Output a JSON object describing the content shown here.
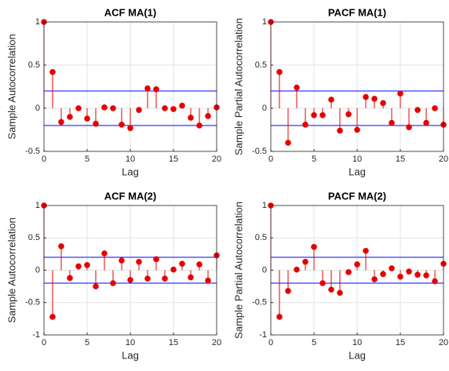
{
  "chart_data": [
    {
      "type": "stem",
      "title": "ACF MA(1)",
      "xlabel": "Lag",
      "ylabel": "Sample Autocorrelation",
      "x": [
        0,
        1,
        2,
        3,
        4,
        5,
        6,
        7,
        8,
        9,
        10,
        11,
        12,
        13,
        14,
        15,
        16,
        17,
        18,
        19,
        20
      ],
      "values": [
        1,
        0.42,
        -0.16,
        -0.1,
        0.0,
        -0.12,
        -0.18,
        0.01,
        0.0,
        -0.19,
        -0.23,
        -0.02,
        0.23,
        0.22,
        0.0,
        -0.01,
        0.03,
        -0.11,
        -0.2,
        -0.09,
        0.01
      ],
      "confidence_bounds": [
        -0.2,
        0.2
      ],
      "xlim": [
        0,
        20
      ],
      "xticks": [
        0,
        5,
        10,
        15,
        20
      ],
      "ylim": [
        -0.5,
        1
      ],
      "yticks": [
        -0.5,
        0,
        0.5,
        1
      ],
      "grid": true,
      "color": "#e60000",
      "bound_color": "#0000ff"
    },
    {
      "type": "stem",
      "title": "PACF MA(1)",
      "xlabel": "Lag",
      "ylabel": "Sample Partial Autocorrelation",
      "x": [
        0,
        1,
        2,
        3,
        4,
        5,
        6,
        7,
        8,
        9,
        10,
        11,
        12,
        13,
        14,
        15,
        16,
        17,
        18,
        19,
        20
      ],
      "values": [
        1,
        0.42,
        -0.4,
        0.24,
        -0.19,
        -0.08,
        -0.08,
        0.1,
        -0.26,
        -0.07,
        -0.25,
        0.13,
        0.11,
        0.06,
        -0.17,
        0.17,
        -0.22,
        -0.02,
        -0.17,
        0.0,
        -0.19
      ],
      "confidence_bounds": [
        -0.2,
        0.2
      ],
      "xlim": [
        0,
        20
      ],
      "xticks": [
        0,
        5,
        10,
        15,
        20
      ],
      "ylim": [
        -0.5,
        1
      ],
      "yticks": [
        -0.5,
        0,
        0.5,
        1
      ],
      "grid": true,
      "color": "#e60000",
      "bound_color": "#0000ff"
    },
    {
      "type": "stem",
      "title": "ACF MA(2)",
      "xlabel": "Lag",
      "ylabel": "Sample Autocorrelation",
      "x": [
        0,
        1,
        2,
        3,
        4,
        5,
        6,
        7,
        8,
        9,
        10,
        11,
        12,
        13,
        14,
        15,
        16,
        17,
        18,
        19,
        20
      ],
      "values": [
        1,
        -0.72,
        0.37,
        -0.12,
        0.06,
        0.08,
        -0.25,
        0.26,
        -0.2,
        0.15,
        -0.15,
        0.13,
        -0.13,
        0.17,
        -0.13,
        0.01,
        0.1,
        -0.11,
        0.09,
        -0.16,
        0.23
      ],
      "confidence_bounds": [
        -0.2,
        0.2
      ],
      "xlim": [
        0,
        20
      ],
      "xticks": [
        0,
        5,
        10,
        15,
        20
      ],
      "ylim": [
        -1,
        1
      ],
      "yticks": [
        -1,
        -0.5,
        0,
        0.5,
        1
      ],
      "grid": true,
      "color": "#e60000",
      "bound_color": "#0000ff"
    },
    {
      "type": "stem",
      "title": "PACF MA(2)",
      "xlabel": "Lag",
      "ylabel": "Sample Partial Autocorrelation",
      "x": [
        0,
        1,
        2,
        3,
        4,
        5,
        6,
        7,
        8,
        9,
        10,
        11,
        12,
        13,
        14,
        15,
        16,
        17,
        18,
        19,
        20
      ],
      "values": [
        1,
        -0.72,
        -0.32,
        0.01,
        0.13,
        0.36,
        -0.2,
        -0.3,
        -0.35,
        -0.03,
        0.09,
        0.3,
        -0.14,
        -0.06,
        0.03,
        -0.1,
        -0.02,
        -0.07,
        -0.08,
        -0.17,
        0.1
      ],
      "confidence_bounds": [
        -0.2,
        0.2
      ],
      "xlim": [
        0,
        20
      ],
      "xticks": [
        0,
        5,
        10,
        15,
        20
      ],
      "ylim": [
        -1,
        1
      ],
      "yticks": [
        -1,
        -0.5,
        0,
        0.5,
        1
      ],
      "grid": true,
      "color": "#e60000",
      "bound_color": "#0000ff"
    }
  ]
}
